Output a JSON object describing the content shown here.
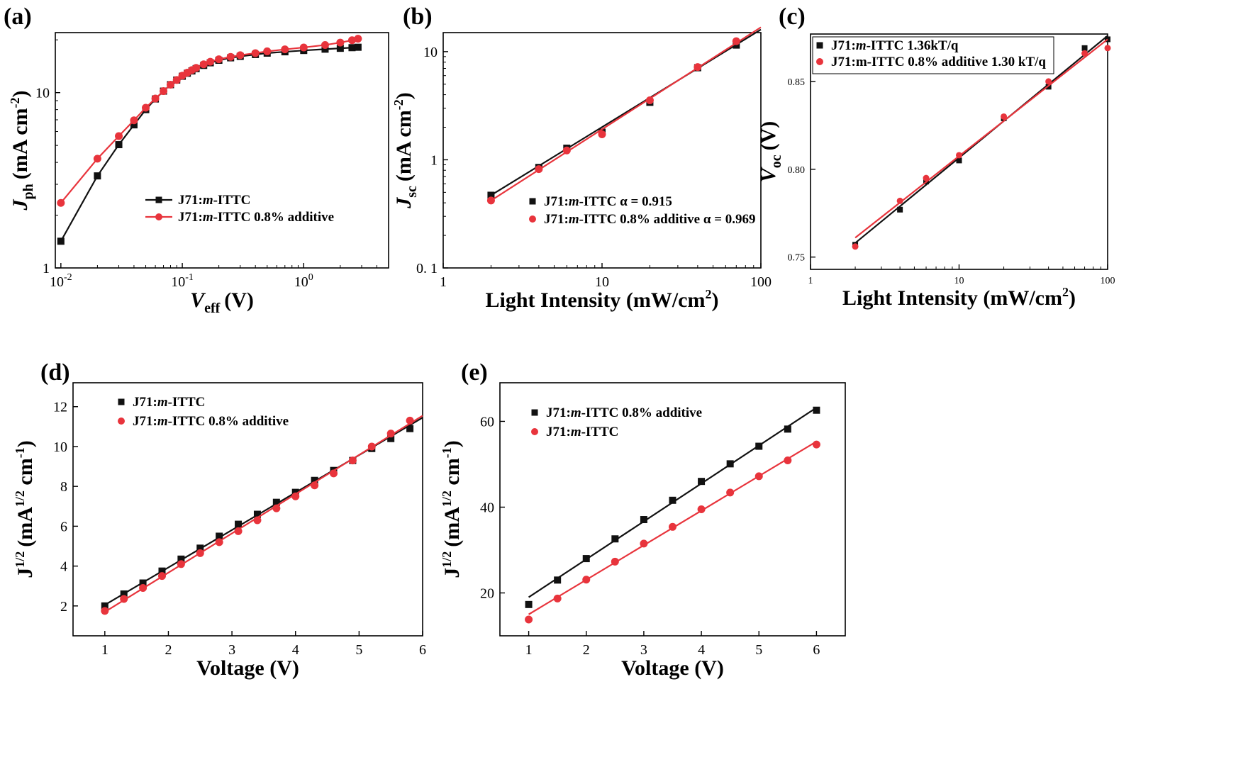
{
  "colors": {
    "black_series": "#111111",
    "red_series": "#e8343c"
  },
  "chart_data": [
    {
      "id": "a",
      "panel_label": "(a)",
      "type": "line",
      "xscale": "log",
      "yscale": "log",
      "xlabel": "V",
      "xlabel_sub": "eff",
      "xlabel_unit": "(V)",
      "ylabel": "J",
      "ylabel_sub": "ph",
      "ylabel_unit": "(mA cm",
      "ylabel_unit_sup": "-2",
      "ylabel_unit_end": ")",
      "xlim": [
        0.009,
        5
      ],
      "ylim": [
        1,
        22
      ],
      "xticks": [
        {
          "value": 0.01,
          "base": "10",
          "exp": "-2"
        },
        {
          "value": 0.1,
          "base": "10",
          "exp": "-1"
        },
        {
          "value": 1,
          "base": "10",
          "exp": "0"
        }
      ],
      "yticks": [
        {
          "value": 1,
          "label": "1"
        },
        {
          "value": 10,
          "label": "10"
        }
      ],
      "legend_position": "center-right",
      "series": [
        {
          "name_pre": "J71:",
          "name_italic": "m",
          "name_post": "-ITTC",
          "color": "black",
          "marker": "square",
          "line": true,
          "x": [
            0.01,
            0.02,
            0.03,
            0.04,
            0.05,
            0.06,
            0.07,
            0.08,
            0.09,
            0.1,
            0.11,
            0.12,
            0.13,
            0.15,
            0.17,
            0.2,
            0.25,
            0.3,
            0.4,
            0.5,
            0.7,
            1.0,
            1.5,
            2.0,
            2.5,
            2.8
          ],
          "y": [
            1.42,
            3.35,
            5.05,
            6.55,
            8.0,
            9.2,
            10.2,
            11.1,
            11.8,
            12.4,
            12.9,
            13.3,
            13.7,
            14.3,
            14.8,
            15.3,
            15.8,
            16.1,
            16.5,
            16.8,
            17.1,
            17.4,
            17.7,
            17.9,
            18.05,
            18.15
          ]
        },
        {
          "name_pre": "J71:",
          "name_italic": "m",
          "name_post": "-ITTC 0.8% additive",
          "color": "red",
          "marker": "circle",
          "line": true,
          "x": [
            0.01,
            0.02,
            0.03,
            0.04,
            0.05,
            0.06,
            0.07,
            0.08,
            0.09,
            0.1,
            0.11,
            0.12,
            0.13,
            0.15,
            0.17,
            0.2,
            0.25,
            0.3,
            0.4,
            0.5,
            0.7,
            1.0,
            1.5,
            2.0,
            2.5,
            2.8
          ],
          "y": [
            2.35,
            4.2,
            5.65,
            6.95,
            8.2,
            9.25,
            10.2,
            11.1,
            11.8,
            12.5,
            13.0,
            13.45,
            13.85,
            14.5,
            15.0,
            15.5,
            16.0,
            16.35,
            16.8,
            17.2,
            17.65,
            18.1,
            18.7,
            19.3,
            19.9,
            20.3
          ]
        }
      ]
    },
    {
      "id": "b",
      "panel_label": "(b)",
      "type": "scatter",
      "xscale": "log",
      "yscale": "log",
      "xlabel": "Light Intensity (mW/cm",
      "xlabel_sup": "2",
      "xlabel_end": ")",
      "ylabel": "J",
      "ylabel_sub": "sc",
      "ylabel_unit": "(mA cm",
      "ylabel_unit_sup": "-2",
      "ylabel_unit_end": ")",
      "xlim": [
        1,
        100
      ],
      "ylim": [
        0.1,
        15
      ],
      "xticks": [
        {
          "value": 1,
          "label": "1"
        },
        {
          "value": 10,
          "label": "10"
        },
        {
          "value": 100,
          "label": "100"
        }
      ],
      "yticks": [
        {
          "value": 0.1,
          "label": "0. 1"
        },
        {
          "value": 1,
          "label": "1"
        },
        {
          "value": 10,
          "label": "10"
        }
      ],
      "legend_position": "lower-right",
      "series": [
        {
          "name_pre": "J71:",
          "name_italic": "m",
          "name_post": "-ITTC α = 0.915",
          "color": "black",
          "marker": "square",
          "x": [
            2,
            4,
            6,
            10,
            20,
            40,
            70
          ],
          "y": [
            0.47,
            0.85,
            1.28,
            1.8,
            3.4,
            7.1,
            11.5
          ],
          "fit": {
            "x": [
              2,
              100
            ],
            "y": [
              0.47,
              16
            ]
          }
        },
        {
          "name_pre": "J71:",
          "name_italic": "m",
          "name_post": "-ITTC 0.8% additive α = 0.969",
          "color": "red",
          "marker": "circle",
          "x": [
            2,
            4,
            6,
            10,
            20,
            40,
            70
          ],
          "y": [
            0.42,
            0.82,
            1.22,
            1.72,
            3.55,
            7.2,
            12.5
          ],
          "fit": {
            "x": [
              2,
              100
            ],
            "y": [
              0.42,
              16.8
            ]
          }
        }
      ]
    },
    {
      "id": "c",
      "panel_label": "(c)",
      "type": "scatter",
      "xscale": "log",
      "yscale": "linear",
      "xlabel": "Light Intensity (mW/cm",
      "xlabel_sup": "2",
      "xlabel_end": ")",
      "ylabel": "V",
      "ylabel_sub": "oc",
      "ylabel_unit": "(V)",
      "xlim": [
        1,
        100
      ],
      "ylim": [
        0.743,
        0.877
      ],
      "xticks": [
        {
          "value": 1,
          "label": "1"
        },
        {
          "value": 10,
          "label": "10"
        },
        {
          "value": 100,
          "label": "100"
        }
      ],
      "yticks": [
        {
          "value": 0.75,
          "label": "0.75"
        },
        {
          "value": 0.8,
          "label": "0.80"
        },
        {
          "value": 0.85,
          "label": "0.85"
        }
      ],
      "legend_position": "top-left",
      "series": [
        {
          "name_pre": "J71:",
          "name_italic": "m",
          "name_post": "-ITTC 1.36kT/q",
          "color": "black",
          "marker": "square",
          "x": [
            2,
            4,
            6,
            10,
            20,
            40,
            70,
            100
          ],
          "y": [
            0.757,
            0.777,
            0.793,
            0.805,
            0.829,
            0.847,
            0.869,
            0.874
          ],
          "fit": {
            "x": [
              2,
              100
            ],
            "y": [
              0.758,
              0.876
            ]
          }
        },
        {
          "name_pre": "J71:m-ITTC 0.8% additive 1.30 kT/q",
          "name_italic": "",
          "name_post": "",
          "color": "red",
          "marker": "circle",
          "x": [
            2,
            4,
            6,
            10,
            20,
            40,
            70,
            100
          ],
          "y": [
            0.756,
            0.782,
            0.795,
            0.808,
            0.83,
            0.85,
            0.866,
            0.869
          ],
          "fit": {
            "x": [
              2,
              100
            ],
            "y": [
              0.761,
              0.874
            ]
          }
        }
      ]
    },
    {
      "id": "d",
      "panel_label": "(d)",
      "type": "scatter",
      "xscale": "linear",
      "yscale": "linear",
      "xlabel": "Voltage (V)",
      "ylabel": "J",
      "ylabel_sup": "1/2",
      "ylabel_unit": "(mA",
      "ylabel_unit_sup": "1/2",
      "ylabel_unit_mid": " cm",
      "ylabel_unit_sup2": "-1",
      "ylabel_unit_end": ")",
      "xlim": [
        0.5,
        6
      ],
      "ylim": [
        0.5,
        13.2
      ],
      "xticks": [
        1,
        2,
        3,
        4,
        5,
        6
      ],
      "yticks": [
        2,
        4,
        6,
        8,
        10,
        12
      ],
      "legend_position": "top-left",
      "series": [
        {
          "name_pre": "J71:",
          "name_italic": "m",
          "name_post": "-ITTC",
          "color": "black",
          "marker": "square",
          "x": [
            1.0,
            1.3,
            1.6,
            1.9,
            2.2,
            2.5,
            2.8,
            3.1,
            3.4,
            3.7,
            4.0,
            4.3,
            4.6,
            4.9,
            5.2,
            5.5,
            5.8
          ],
          "y": [
            2.0,
            2.6,
            3.15,
            3.75,
            4.35,
            4.9,
            5.5,
            6.1,
            6.6,
            7.2,
            7.7,
            8.3,
            8.8,
            9.3,
            9.9,
            10.4,
            10.9
          ],
          "fit": {
            "x": [
              1,
              6
            ],
            "y": [
              2.05,
              11.45
            ]
          }
        },
        {
          "name_pre": "J71:",
          "name_italic": "m",
          "name_post": "-ITTC 0.8% additive",
          "color": "red",
          "marker": "circle",
          "x": [
            1.0,
            1.3,
            1.6,
            1.9,
            2.2,
            2.5,
            2.8,
            3.1,
            3.4,
            3.7,
            4.0,
            4.3,
            4.6,
            4.9,
            5.2,
            5.5,
            5.8
          ],
          "y": [
            1.75,
            2.35,
            2.9,
            3.5,
            4.1,
            4.65,
            5.2,
            5.75,
            6.3,
            6.9,
            7.5,
            8.05,
            8.65,
            9.3,
            10.0,
            10.65,
            11.3
          ],
          "fit": {
            "x": [
              1,
              6
            ],
            "y": [
              1.7,
              11.55
            ]
          }
        }
      ]
    },
    {
      "id": "e",
      "panel_label": "(e)",
      "type": "scatter",
      "xscale": "linear",
      "yscale": "linear",
      "xlabel": "Voltage (V)",
      "ylabel": "J",
      "ylabel_sup": "1/2",
      "ylabel_unit": "(mA",
      "ylabel_unit_sup": "1/2",
      "ylabel_unit_mid": " cm",
      "ylabel_unit_sup2": "-1",
      "ylabel_unit_end": ")",
      "xlim": [
        0.5,
        6.5
      ],
      "ylim": [
        10,
        69
      ],
      "xticks": [
        1,
        2,
        3,
        4,
        5,
        6
      ],
      "yticks": [
        20,
        40,
        60
      ],
      "legend_position": "top-left",
      "series": [
        {
          "name_pre": "J71:",
          "name_italic": "m",
          "name_post": "-ITTC 0.8% additive",
          "color": "black",
          "marker": "square",
          "x": [
            1.0,
            1.5,
            2.0,
            2.5,
            3.0,
            3.5,
            4.0,
            4.5,
            5.0,
            5.5,
            6.0
          ],
          "y": [
            17.3,
            23.0,
            28.0,
            32.6,
            37.1,
            41.6,
            46.0,
            50.1,
            54.2,
            58.2,
            62.6
          ],
          "fit": {
            "x": [
              1,
              6
            ],
            "y": [
              19.0,
              63.2
            ]
          }
        },
        {
          "name_pre": "J71:",
          "name_italic": "m",
          "name_post": "-ITTC",
          "color": "red",
          "marker": "circle",
          "x": [
            1.0,
            1.5,
            2.0,
            2.5,
            3.0,
            3.5,
            4.0,
            4.5,
            5.0,
            5.5,
            6.0
          ],
          "y": [
            13.8,
            18.7,
            23.1,
            27.3,
            31.5,
            35.4,
            39.5,
            43.4,
            47.2,
            50.9,
            54.6
          ],
          "fit": {
            "x": [
              1,
              6
            ],
            "y": [
              15.0,
              55.3
            ]
          }
        }
      ]
    }
  ]
}
